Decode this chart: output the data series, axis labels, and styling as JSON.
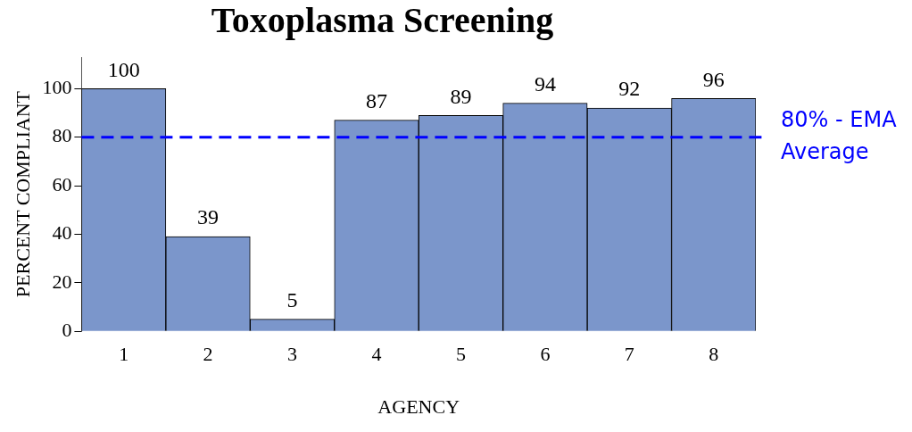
{
  "chart_data": {
    "type": "bar",
    "title": "Toxoplasma Screening",
    "xlabel": "AGENCY",
    "ylabel": "PERCENT COMPLIANT",
    "categories": [
      "1",
      "2",
      "3",
      "4",
      "5",
      "6",
      "7",
      "8"
    ],
    "values": [
      100,
      39,
      5,
      87,
      89,
      94,
      92,
      96
    ],
    "color": "#7b96cb",
    "ylim": [
      0,
      113
    ],
    "yticks": [
      0,
      20,
      40,
      60,
      80,
      100
    ],
    "grid": false,
    "legend": false,
    "data_labels": true,
    "ref_lines": [
      {
        "axis": "y",
        "value": 80,
        "label": "80% - EMA Average",
        "color": "#0000ff",
        "line_style": "dashed"
      }
    ]
  }
}
